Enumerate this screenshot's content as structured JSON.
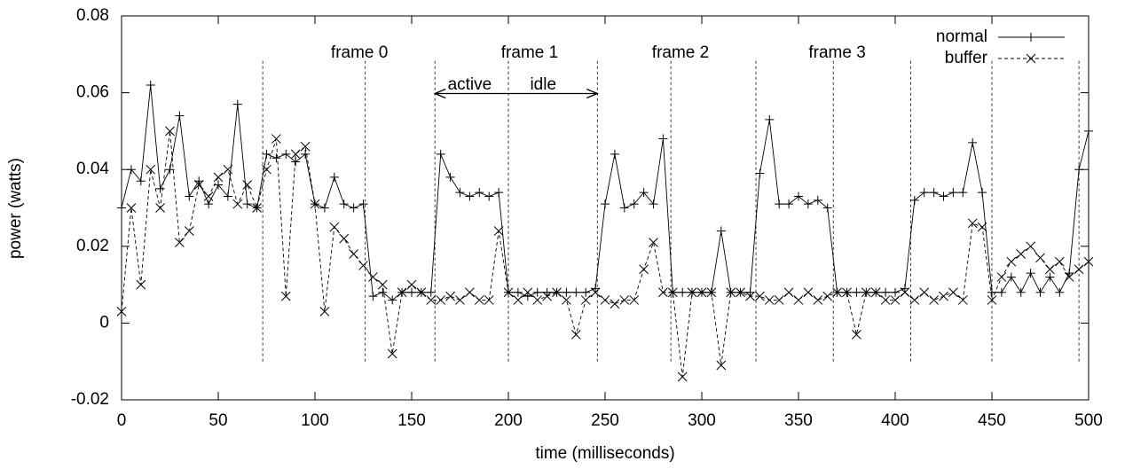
{
  "chart_data": {
    "type": "line",
    "xlabel": "time (milliseconds)",
    "ylabel": "power (watts)",
    "xlim": [
      0,
      500
    ],
    "ylim": [
      -0.02,
      0.08
    ],
    "xticks": [
      0,
      50,
      100,
      150,
      200,
      250,
      300,
      350,
      400,
      450,
      500
    ],
    "yticks": [
      -0.02,
      0,
      0.02,
      0.04,
      0.06,
      0.08
    ],
    "legend": "upper right",
    "x": [
      0,
      5,
      10,
      15,
      20,
      25,
      30,
      35,
      40,
      45,
      50,
      55,
      60,
      65,
      70,
      75,
      80,
      85,
      90,
      95,
      100,
      105,
      110,
      115,
      120,
      125,
      130,
      135,
      140,
      145,
      150,
      155,
      160,
      165,
      170,
      175,
      180,
      185,
      190,
      195,
      200,
      205,
      210,
      215,
      220,
      225,
      230,
      235,
      240,
      245,
      250,
      255,
      260,
      265,
      270,
      275,
      280,
      285,
      290,
      295,
      300,
      305,
      310,
      315,
      320,
      325,
      330,
      335,
      340,
      345,
      350,
      355,
      360,
      365,
      370,
      375,
      380,
      385,
      390,
      395,
      400,
      405,
      410,
      415,
      420,
      425,
      430,
      435,
      440,
      445,
      450,
      455,
      460,
      465,
      470,
      475,
      480,
      485,
      490,
      495,
      500
    ],
    "series": [
      {
        "name": "normal",
        "color": "#000000",
        "dash": false,
        "marker": "plus",
        "values": [
          0.03,
          0.04,
          0.037,
          0.062,
          0.035,
          0.04,
          0.054,
          0.033,
          0.037,
          0.031,
          0.036,
          0.033,
          0.057,
          0.031,
          0.03,
          0.044,
          0.043,
          0.044,
          0.042,
          0.044,
          0.031,
          0.03,
          0.038,
          0.031,
          0.03,
          0.031,
          0.007,
          0.008,
          0.006,
          0.008,
          0.008,
          0.008,
          0.008,
          0.044,
          0.038,
          0.034,
          0.033,
          0.034,
          0.033,
          0.034,
          0.008,
          0.008,
          0.007,
          0.008,
          0.008,
          0.008,
          0.008,
          0.008,
          0.008,
          0.009,
          0.031,
          0.044,
          0.03,
          0.031,
          0.034,
          0.031,
          0.048,
          0.008,
          0.008,
          0.008,
          0.008,
          0.008,
          0.024,
          0.008,
          0.008,
          0.008,
          0.039,
          0.053,
          0.031,
          0.031,
          0.033,
          0.031,
          0.032,
          0.03,
          0.008,
          0.008,
          0.008,
          0.008,
          0.008,
          0.008,
          0.008,
          0.009,
          0.032,
          0.034,
          0.034,
          0.033,
          0.034,
          0.034,
          0.047,
          0.034,
          0.008,
          0.008,
          0.012,
          0.008,
          0.013,
          0.008,
          0.012,
          0.008,
          0.013,
          0.04,
          0.05
        ]
      },
      {
        "name": "buffer",
        "color": "#000000",
        "dash": true,
        "marker": "cross",
        "values": [
          0.003,
          0.03,
          0.01,
          0.04,
          0.03,
          0.05,
          0.021,
          0.024,
          0.036,
          0.033,
          0.038,
          0.04,
          0.031,
          0.036,
          0.03,
          0.04,
          0.048,
          0.007,
          0.044,
          0.046,
          0.031,
          0.003,
          0.025,
          0.022,
          0.018,
          0.015,
          0.012,
          0.01,
          -0.008,
          0.008,
          0.01,
          0.008,
          0.006,
          0.006,
          0.007,
          0.006,
          0.008,
          0.006,
          0.006,
          0.024,
          0.008,
          0.006,
          0.008,
          0.006,
          0.007,
          0.008,
          0.006,
          -0.003,
          0.006,
          0.008,
          0.006,
          0.005,
          0.006,
          0.006,
          0.014,
          0.021,
          0.008,
          0.008,
          -0.014,
          0.008,
          0.008,
          0.008,
          -0.011,
          0.008,
          0.008,
          0.007,
          0.007,
          0.006,
          0.006,
          0.008,
          0.006,
          0.008,
          0.006,
          0.007,
          0.008,
          0.008,
          -0.003,
          0.008,
          0.008,
          0.006,
          0.006,
          0.008,
          0.006,
          0.008,
          0.006,
          0.007,
          0.008,
          0.006,
          0.026,
          0.025,
          0.006,
          0.012,
          0.016,
          0.018,
          0.02,
          0.017,
          0.014,
          0.016,
          0.012,
          0.014,
          0.016
        ]
      }
    ],
    "vlines": [
      73,
      126,
      162,
      200,
      246,
      284,
      328,
      368,
      408,
      450,
      495
    ],
    "vline_range": [
      -0.01,
      0.069
    ],
    "annotations": [
      {
        "text": "frame 0",
        "x": 123,
        "y": 0.0703
      },
      {
        "text": "frame 1",
        "x": 211,
        "y": 0.0703
      },
      {
        "text": "frame 2",
        "x": 289,
        "y": 0.0703
      },
      {
        "text": "frame 3",
        "x": 370,
        "y": 0.0703
      },
      {
        "text": "active",
        "x": 180,
        "y": 0.062
      },
      {
        "text": "idle",
        "x": 218,
        "y": 0.062
      }
    ],
    "arrows": [
      {
        "x1": 200,
        "x2": 162,
        "y": 0.0598
      },
      {
        "x1": 200,
        "x2": 246,
        "y": 0.0598
      }
    ]
  }
}
